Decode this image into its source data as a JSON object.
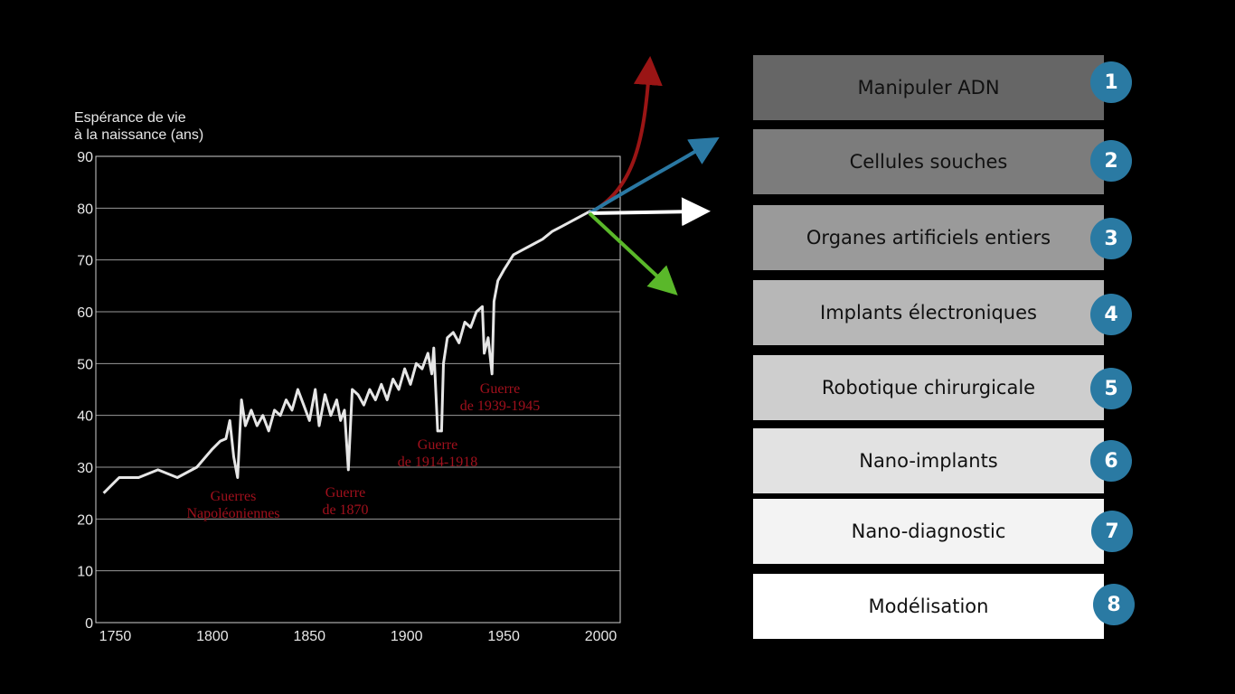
{
  "chart_data": {
    "type": "line",
    "ylabel_lines": [
      "Espérance de vie",
      "à la naissance (ans)"
    ],
    "xlim": [
      1740,
      2010
    ],
    "ylim": [
      0,
      90
    ],
    "xticks": [
      1750,
      1800,
      1850,
      1900,
      1950,
      2000
    ],
    "yticks": [
      0,
      10,
      20,
      30,
      40,
      50,
      60,
      70,
      80,
      90
    ],
    "grid": true,
    "series": [
      {
        "color": "#e6e6e6",
        "x": [
          1744,
          1752,
          1762,
          1772,
          1782,
          1792,
          1800,
          1804,
          1807,
          1809,
          1811,
          1813,
          1815,
          1817,
          1820,
          1823,
          1826,
          1829,
          1832,
          1835,
          1838,
          1841,
          1844,
          1847,
          1850,
          1853,
          1855,
          1858,
          1861,
          1864,
          1866,
          1868,
          1870,
          1872,
          1875,
          1878,
          1881,
          1884,
          1887,
          1890,
          1893,
          1896,
          1899,
          1902,
          1905,
          1908,
          1911,
          1913,
          1914,
          1916,
          1918,
          1919,
          1921,
          1924,
          1927,
          1930,
          1933,
          1936,
          1939,
          1940,
          1942,
          1944,
          1945,
          1947,
          1950,
          1955,
          1960,
          1965,
          1970,
          1975,
          1980,
          1985,
          1990,
          1995
        ],
        "values": [
          25,
          28,
          28,
          29.5,
          28,
          30,
          33.5,
          35,
          35.5,
          39,
          32,
          28,
          43,
          38,
          41,
          38,
          40,
          37,
          41,
          40,
          43,
          41,
          45,
          42,
          39,
          45,
          38,
          44,
          40,
          43,
          39,
          41,
          29.5,
          45,
          44,
          42,
          45,
          43,
          46,
          43,
          47,
          45,
          49,
          46,
          50,
          49,
          52,
          48,
          53,
          37,
          37,
          50,
          55,
          56,
          54,
          58,
          57,
          60,
          61,
          52,
          55,
          48,
          62,
          66,
          68,
          71,
          72,
          73,
          74,
          75.5,
          76.5,
          77.5,
          78.5,
          79.5
        ]
      }
    ],
    "annotations": [
      {
        "lines": [
          "Guerres",
          "Napoléoniennes"
        ]
      },
      {
        "lines": [
          "Guerre",
          "de 1870"
        ]
      },
      {
        "lines": [
          "Guerre",
          "de 1914-1918"
        ]
      },
      {
        "lines": [
          "Guerre",
          "de 1939-1945"
        ]
      }
    ],
    "projection_arrows": [
      {
        "color": "#9a1515"
      },
      {
        "color": "#2a78a3"
      },
      {
        "color": "#ffffff"
      },
      {
        "color": "#5ab82a"
      }
    ]
  },
  "list": {
    "items": [
      {
        "number": "1",
        "label": "Manipuler ADN",
        "bg": "#666666"
      },
      {
        "number": "2",
        "label": "Cellules souches",
        "bg": "#7c7c7c"
      },
      {
        "number": "3",
        "label": "Organes artificiels entiers",
        "bg": "#9a9a9a"
      },
      {
        "number": "4",
        "label": "Implants électroniques",
        "bg": "#b7b7b7"
      },
      {
        "number": "5",
        "label": "Robotique chirurgicale",
        "bg": "#cecece"
      },
      {
        "number": "6",
        "label": "Nano-implants",
        "bg": "#e2e2e2"
      },
      {
        "number": "7",
        "label": "Nano-diagnostic",
        "bg": "#f3f3f3"
      },
      {
        "number": "8",
        "label": "Modélisation",
        "bg": "#ffffff"
      }
    ],
    "badge_color": "#2a7aa3"
  }
}
